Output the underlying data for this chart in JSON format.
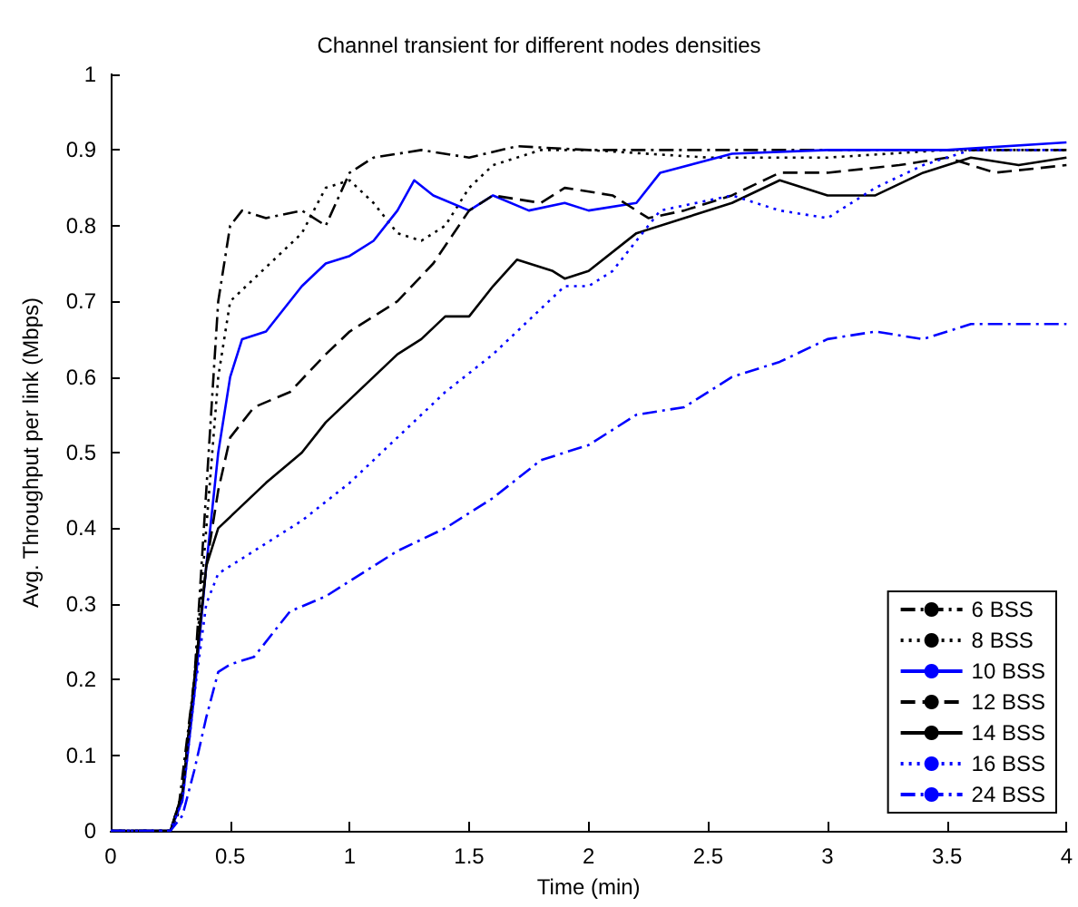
{
  "chart_data": {
    "type": "line",
    "title": "Channel transient for different nodes densities",
    "xlabel": "Time (min)",
    "ylabel": "Avg. Throughput per link (Mbps)",
    "xlim": [
      0,
      4
    ],
    "ylim": [
      0,
      1
    ],
    "xticks": [
      0,
      0.5,
      1,
      1.5,
      2,
      2.5,
      3,
      3.5,
      4
    ],
    "yticks": [
      0,
      0.1,
      0.2,
      0.3,
      0.4,
      0.5,
      0.6,
      0.7,
      0.8,
      0.9,
      1
    ],
    "grid": false,
    "legend": "bottom right",
    "marker": "none",
    "series": [
      {
        "name": "6 BSS",
        "color": "#000000",
        "line_style": "dashdot",
        "x": [
          0,
          0.25,
          0.28,
          0.35,
          0.4,
          0.45,
          0.5,
          0.55,
          0.65,
          0.8,
          0.9,
          1.0,
          1.1,
          1.3,
          1.5,
          1.7,
          2.0,
          2.2,
          2.5,
          3.0,
          3.5,
          4.0
        ],
        "values": [
          0,
          0,
          0.02,
          0.2,
          0.45,
          0.7,
          0.8,
          0.82,
          0.81,
          0.82,
          0.8,
          0.87,
          0.89,
          0.9,
          0.89,
          0.905,
          0.9,
          0.9,
          0.9,
          0.9,
          0.9,
          0.9
        ]
      },
      {
        "name": "8 BSS",
        "color": "#000000",
        "line_style": "dotted",
        "x": [
          0,
          0.25,
          0.3,
          0.35,
          0.4,
          0.45,
          0.5,
          0.6,
          0.8,
          0.9,
          1.0,
          1.1,
          1.2,
          1.3,
          1.4,
          1.5,
          1.6,
          1.8,
          2.0,
          2.5,
          3.0,
          3.5,
          4.0
        ],
        "values": [
          0,
          0,
          0.05,
          0.2,
          0.4,
          0.6,
          0.7,
          0.73,
          0.79,
          0.85,
          0.86,
          0.83,
          0.79,
          0.78,
          0.8,
          0.85,
          0.88,
          0.9,
          0.9,
          0.89,
          0.89,
          0.9,
          0.9
        ]
      },
      {
        "name": "10 BSS",
        "color": "#0000ff",
        "line_style": "solid",
        "x": [
          0,
          0.25,
          0.3,
          0.35,
          0.4,
          0.45,
          0.5,
          0.55,
          0.65,
          0.8,
          0.9,
          1.0,
          1.1,
          1.2,
          1.27,
          1.35,
          1.5,
          1.6,
          1.75,
          1.9,
          2.0,
          2.2,
          2.3,
          2.6,
          3.0,
          3.5,
          4.0
        ],
        "values": [
          0,
          0,
          0.04,
          0.18,
          0.35,
          0.5,
          0.6,
          0.65,
          0.66,
          0.72,
          0.75,
          0.76,
          0.78,
          0.82,
          0.86,
          0.84,
          0.82,
          0.84,
          0.82,
          0.83,
          0.82,
          0.83,
          0.87,
          0.895,
          0.9,
          0.9,
          0.91
        ]
      },
      {
        "name": "12 BSS",
        "color": "#000000",
        "line_style": "dashed",
        "x": [
          0,
          0.25,
          0.3,
          0.35,
          0.4,
          0.45,
          0.5,
          0.6,
          0.75,
          0.9,
          1.0,
          1.2,
          1.35,
          1.5,
          1.6,
          1.8,
          1.9,
          2.1,
          2.25,
          2.4,
          2.6,
          2.8,
          3.0,
          3.3,
          3.5,
          3.7,
          4.0
        ],
        "values": [
          0,
          0,
          0.05,
          0.2,
          0.35,
          0.45,
          0.52,
          0.56,
          0.58,
          0.63,
          0.66,
          0.7,
          0.75,
          0.82,
          0.84,
          0.83,
          0.85,
          0.84,
          0.81,
          0.82,
          0.84,
          0.87,
          0.87,
          0.88,
          0.89,
          0.87,
          0.88
        ]
      },
      {
        "name": "14 BSS",
        "color": "#000000",
        "line_style": "solid",
        "x": [
          0,
          0.25,
          0.3,
          0.35,
          0.4,
          0.45,
          0.55,
          0.65,
          0.8,
          0.9,
          1.0,
          1.1,
          1.2,
          1.3,
          1.4,
          1.5,
          1.6,
          1.7,
          1.85,
          1.9,
          2.0,
          2.2,
          2.4,
          2.6,
          2.8,
          3.0,
          3.2,
          3.4,
          3.6,
          3.8,
          4.0
        ],
        "values": [
          0,
          0,
          0.05,
          0.2,
          0.35,
          0.4,
          0.43,
          0.46,
          0.5,
          0.54,
          0.57,
          0.6,
          0.63,
          0.65,
          0.68,
          0.68,
          0.72,
          0.755,
          0.74,
          0.73,
          0.74,
          0.79,
          0.81,
          0.83,
          0.86,
          0.84,
          0.84,
          0.87,
          0.89,
          0.88,
          0.89
        ]
      },
      {
        "name": "16 BSS",
        "color": "#0000ff",
        "line_style": "dotted",
        "x": [
          0,
          0.25,
          0.3,
          0.35,
          0.4,
          0.45,
          0.6,
          0.8,
          1.0,
          1.2,
          1.4,
          1.6,
          1.8,
          1.9,
          2.0,
          2.1,
          2.3,
          2.6,
          2.8,
          3.0,
          3.2,
          3.4,
          3.6,
          4.0
        ],
        "values": [
          0,
          0,
          0.04,
          0.18,
          0.3,
          0.34,
          0.37,
          0.41,
          0.46,
          0.52,
          0.58,
          0.63,
          0.69,
          0.72,
          0.72,
          0.74,
          0.82,
          0.84,
          0.82,
          0.81,
          0.85,
          0.88,
          0.9,
          0.9
        ]
      },
      {
        "name": "24 BSS",
        "color": "#0000ff",
        "line_style": "dashdot",
        "x": [
          0,
          0.25,
          0.3,
          0.35,
          0.4,
          0.45,
          0.5,
          0.6,
          0.75,
          0.9,
          1.0,
          1.2,
          1.4,
          1.6,
          1.8,
          2.0,
          2.2,
          2.4,
          2.6,
          2.8,
          3.0,
          3.2,
          3.4,
          3.6,
          3.8,
          4.0
        ],
        "values": [
          0,
          0,
          0.02,
          0.08,
          0.15,
          0.21,
          0.22,
          0.23,
          0.29,
          0.31,
          0.33,
          0.37,
          0.4,
          0.44,
          0.49,
          0.51,
          0.55,
          0.56,
          0.6,
          0.62,
          0.65,
          0.66,
          0.65,
          0.67,
          0.67,
          0.67
        ]
      }
    ]
  }
}
